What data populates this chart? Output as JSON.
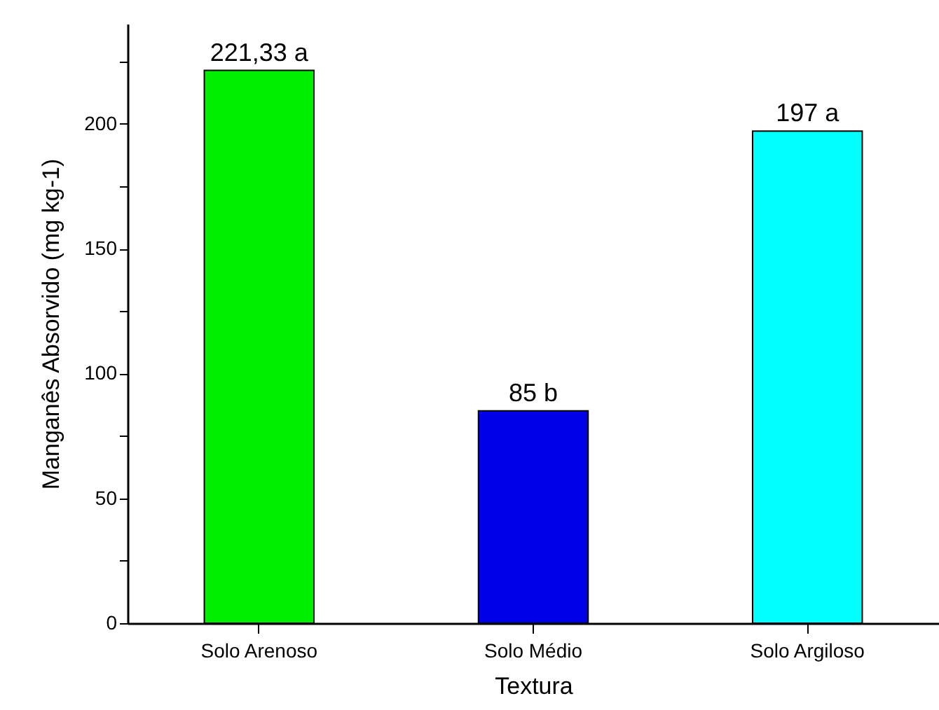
{
  "chart_data": {
    "type": "bar",
    "xlabel": "Textura",
    "ylabel": "Manganês Absorvido (mg kg-1)",
    "categories": [
      "Solo Arenoso",
      "Solo Médio",
      "Solo Argiloso"
    ],
    "values": [
      221.33,
      85,
      197
    ],
    "colors": [
      "#00f000",
      "#0000e8",
      "#00ffff"
    ],
    "value_labels": [
      "221,33 a",
      "85 b",
      "197 a"
    ],
    "ylim": [
      0,
      240
    ],
    "yticks": [
      0,
      {
        "value": 25,
        "label": null
      },
      50,
      {
        "value": 75,
        "label": null
      },
      100,
      {
        "value": 125,
        "label": null
      },
      150,
      {
        "value": 175,
        "label": null
      },
      200,
      {
        "value": 225,
        "label": null
      }
    ],
    "grid": false
  }
}
